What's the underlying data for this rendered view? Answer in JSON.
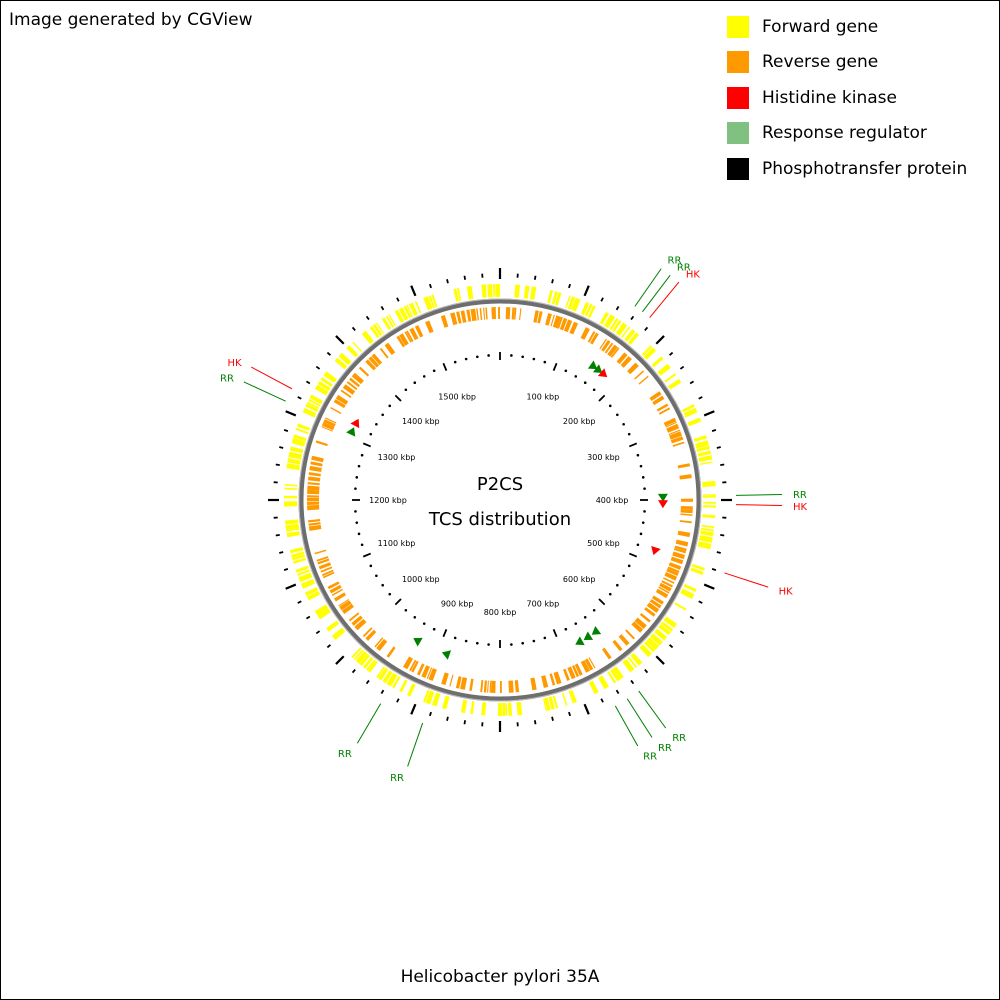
{
  "credit": "Image generated by CGView",
  "organism": "Helicobacter pylori 35A",
  "center_title": "P2CS",
  "center_subtitle": "TCS distribution",
  "legend": [
    {
      "label": "Forward gene",
      "color": "#ffff00"
    },
    {
      "label": "Reverse gene",
      "color": "#ff9900"
    },
    {
      "label": "Histidine kinase",
      "color": "#ff0000"
    },
    {
      "label": "Response regulator",
      "color": "#80c080"
    },
    {
      "label": "Phosphotransfer protein",
      "color": "#000000"
    }
  ],
  "genome_kbp": 1600,
  "ruler_labels": [
    "100 kbp",
    "200 kbp",
    "300 kbp",
    "400 kbp",
    "500 kbp",
    "600 kbp",
    "700 kbp",
    "800 kbp",
    "900 kbp",
    "1000 kbp",
    "1100 kbp",
    "1200 kbp",
    "1300 kbp",
    "1400 kbp",
    "1500 kbp"
  ],
  "features": [
    {
      "type": "RR",
      "label": "RR",
      "position_kbp": 155,
      "color": "#008000"
    },
    {
      "type": "RR",
      "label": "RR",
      "position_kbp": 165,
      "color": "#008000"
    },
    {
      "type": "HK",
      "label": "HK",
      "position_kbp": 175,
      "color": "#ff0000"
    },
    {
      "type": "RR",
      "label": "RR",
      "position_kbp": 395,
      "color": "#008000"
    },
    {
      "type": "HK",
      "label": "HK",
      "position_kbp": 405,
      "color": "#ff0000"
    },
    {
      "type": "HK",
      "label": "HK",
      "position_kbp": 480,
      "color": "#ff0000"
    },
    {
      "type": "RR",
      "label": "RR",
      "position_kbp": 640,
      "color": "#008000"
    },
    {
      "type": "RR",
      "label": "RR",
      "position_kbp": 655,
      "color": "#008000"
    },
    {
      "type": "RR",
      "label": "RR",
      "position_kbp": 670,
      "color": "#008000"
    },
    {
      "type": "RR",
      "label": "RR",
      "position_kbp": 885,
      "color": "#008000"
    },
    {
      "type": "RR",
      "label": "RR",
      "position_kbp": 935,
      "color": "#008000"
    },
    {
      "type": "RR",
      "label": "RR",
      "position_kbp": 1310,
      "color": "#008000"
    },
    {
      "type": "HK",
      "label": "HK",
      "position_kbp": 1325,
      "color": "#ff0000"
    }
  ]
}
